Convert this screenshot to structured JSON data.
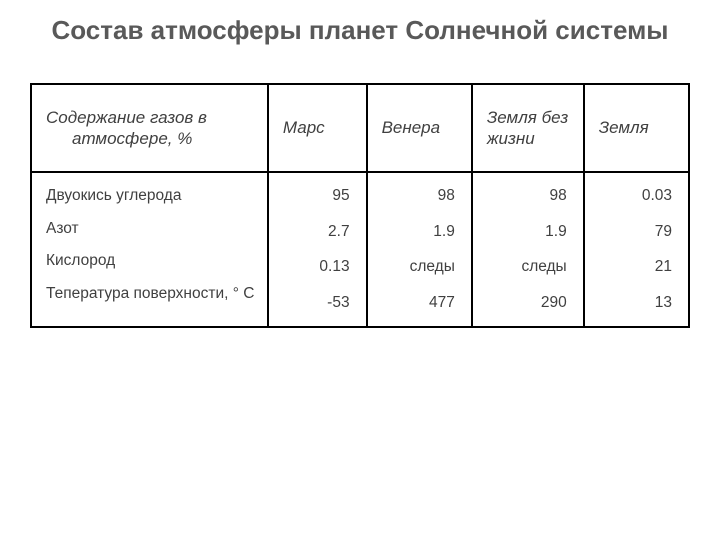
{
  "title": "Состав атмосферы планет Солнечной системы",
  "table": {
    "type": "table",
    "border_color": "#000000",
    "text_color": "#404040",
    "header_fontsize": 17,
    "body_fontsize": 15.5,
    "background_color": "#ffffff",
    "columns": [
      {
        "label_main": "Содержание газов в",
        "label_sub": "атмосфере, %",
        "width_pct": 36,
        "align": "left"
      },
      {
        "label": "Марс",
        "width_pct": 15,
        "align": "right"
      },
      {
        "label": "Венера",
        "width_pct": 16,
        "align": "right"
      },
      {
        "label": "Земля без жизни",
        "width_pct": 17,
        "align": "right"
      },
      {
        "label": "Земля",
        "width_pct": 16,
        "align": "right"
      }
    ],
    "row_labels": [
      "Двуокись углерода",
      "Азот",
      "Кислород",
      "Тепература поверхности, ° С"
    ],
    "rows": [
      [
        "95",
        "98",
        "98",
        "0.03"
      ],
      [
        "2.7",
        "1.9",
        "1.9",
        "79"
      ],
      [
        "0.13",
        "следы",
        "следы",
        "21"
      ],
      [
        "-53",
        "477",
        "290",
        "13"
      ]
    ]
  }
}
